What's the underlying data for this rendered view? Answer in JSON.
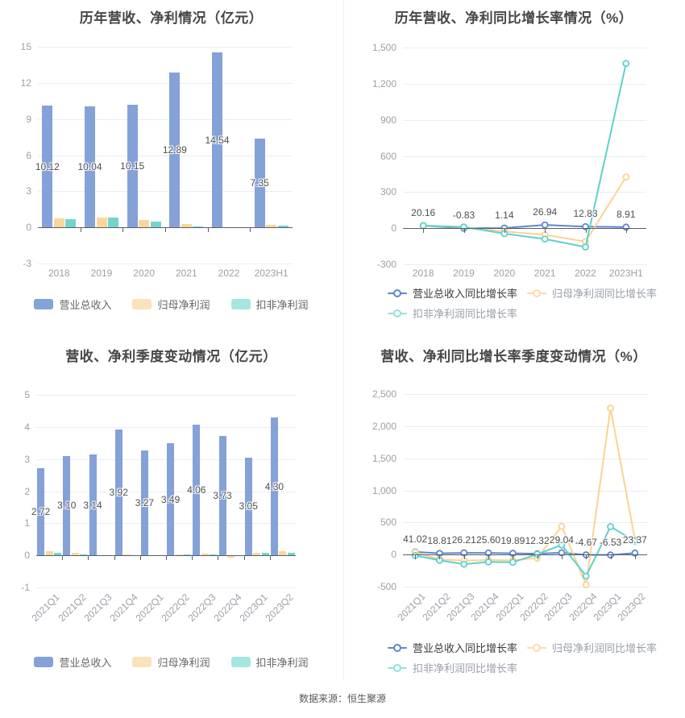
{
  "source": "数据来源：恒生聚源",
  "chart_data": [
    {
      "type": "bar",
      "title": "历年营收、净利情况（亿元）",
      "categories": [
        "2018",
        "2019",
        "2020",
        "2021",
        "2022",
        "2023H1"
      ],
      "x_label_rotate": false,
      "y_axis": {
        "min": -3,
        "max": 15,
        "grid": true,
        "ticks": [
          {
            "v": 15,
            "label": "15"
          },
          {
            "v": 12,
            "label": "12"
          },
          {
            "v": 9,
            "label": "9"
          },
          {
            "v": 6,
            "label": "6"
          },
          {
            "v": 3,
            "label": "3"
          },
          {
            "v": 0,
            "label": "0"
          },
          {
            "v": -3,
            "label": "-3"
          }
        ]
      },
      "series": [
        {
          "name": "营业总收入",
          "color": "#84A1D8",
          "legend_color": "#84A1D8",
          "values": [
            10.12,
            10.04,
            10.15,
            12.89,
            14.54,
            7.35
          ],
          "labels": [
            "10.12",
            "10.04",
            "10.15",
            "12.89",
            "14.54",
            "7.35"
          ]
        },
        {
          "name": "归母净利润",
          "color": "#F9D79C",
          "legend_color": "#FAE2BB",
          "values": [
            0.75,
            0.82,
            0.6,
            0.26,
            -0.05,
            0.2
          ]
        },
        {
          "name": "扣非净利润",
          "color": "#72D5CD",
          "legend_color": "#A6E6E0",
          "values": [
            0.7,
            0.8,
            0.5,
            0.05,
            0.02,
            0.16
          ]
        }
      ],
      "legend_position": "bottom-center"
    },
    {
      "type": "line",
      "title": "历年营收、净利同比增长率情况（%）",
      "categories": [
        "2018",
        "2019",
        "2020",
        "2021",
        "2022",
        "2023H1"
      ],
      "x_label_rotate": false,
      "y_axis": {
        "min": -300,
        "max": 1500,
        "grid": true,
        "ticks": [
          {
            "v": 1500,
            "label": "1,500"
          },
          {
            "v": 1200,
            "label": "1,200"
          },
          {
            "v": 900,
            "label": "900"
          },
          {
            "v": 600,
            "label": "600"
          },
          {
            "v": 300,
            "label": "300"
          },
          {
            "v": 0,
            "label": "0"
          },
          {
            "v": -300,
            "label": "-300"
          }
        ]
      },
      "series": [
        {
          "name": "营业总收入同比增长率",
          "color": "#5F86CE",
          "legend_color": "#5F86CE",
          "values": [
            20.16,
            -0.83,
            1.14,
            26.94,
            12.83,
            8.91
          ],
          "labels": [
            "20.16",
            "-0.83",
            "1.14",
            "26.94",
            "12.83",
            "8.91"
          ]
        },
        {
          "name": "归母净利润同比增长率",
          "color": "#FAD391",
          "legend_color": "#FBDCA9",
          "values": [
            20,
            8,
            -27,
            -55,
            -112,
            425
          ]
        },
        {
          "name": "扣非净利润同比增长率",
          "color": "#5ED1CB",
          "legend_color": "#93E1DC",
          "values": [
            21,
            10,
            -45,
            -90,
            -156,
            1368
          ]
        }
      ],
      "legend_position": "bottom-left"
    },
    {
      "type": "bar",
      "title": "营收、净利季度变动情况（亿元）",
      "categories": [
        "2021Q1",
        "2021Q2",
        "2021Q3",
        "2021Q4",
        "2022Q1",
        "2022Q2",
        "2022Q3",
        "2022Q4",
        "2023Q1",
        "2023Q2"
      ],
      "x_label_rotate": true,
      "y_axis": {
        "min": -1,
        "max": 5,
        "grid": true,
        "ticks": [
          {
            "v": 5,
            "label": "5"
          },
          {
            "v": 4,
            "label": "4"
          },
          {
            "v": 3,
            "label": "3"
          },
          {
            "v": 2,
            "label": "2"
          },
          {
            "v": 1,
            "label": "1"
          },
          {
            "v": 0,
            "label": "0"
          },
          {
            "v": -1,
            "label": "-1"
          }
        ]
      },
      "series": [
        {
          "name": "营业总收入",
          "color": "#84A1D8",
          "legend_color": "#84A1D8",
          "values": [
            2.72,
            3.1,
            3.14,
            3.92,
            3.27,
            3.49,
            4.06,
            3.73,
            3.05,
            4.3
          ],
          "labels": [
            "2.72",
            "3.10",
            "3.14",
            "3.92",
            "3.27",
            "3.49",
            "4.06",
            "3.73",
            "3.05",
            "4.30"
          ]
        },
        {
          "name": "归母净利润",
          "color": "#F9D79C",
          "legend_color": "#FAE2BB",
          "values": [
            0.13,
            0.09,
            -0.01,
            0.03,
            -0.01,
            0.03,
            0.05,
            -0.08,
            0.07,
            0.12
          ]
        },
        {
          "name": "扣非净利润",
          "color": "#72D5CD",
          "legend_color": "#A6E6E0",
          "values": [
            0.08,
            0.04,
            -0.03,
            0.01,
            -0.02,
            0.04,
            0.04,
            -0.03,
            0.07,
            0.09
          ]
        }
      ],
      "legend_position": "bottom-center"
    },
    {
      "type": "line",
      "title": "营收、净利同比增长率季度变动情况（%）",
      "categories": [
        "2021Q1",
        "2021Q2",
        "2021Q3",
        "2021Q4",
        "2022Q1",
        "2022Q2",
        "2022Q3",
        "2022Q4",
        "2023Q1",
        "2023Q2"
      ],
      "x_label_rotate": true,
      "y_axis": {
        "min": -500,
        "max": 2500,
        "grid": true,
        "ticks": [
          {
            "v": 2500,
            "label": "2,500"
          },
          {
            "v": 2000,
            "label": "2,000"
          },
          {
            "v": 1500,
            "label": "1,500"
          },
          {
            "v": 1000,
            "label": "1,000"
          },
          {
            "v": 500,
            "label": "500"
          },
          {
            "v": 0,
            "label": "0"
          },
          {
            "v": -500,
            "label": "-500"
          }
        ]
      },
      "series": [
        {
          "name": "营业总收入同比增长率",
          "color": "#5F86CE",
          "legend_color": "#5F86CE",
          "values": [
            41.02,
            18.81,
            26.21,
            25.6,
            19.89,
            12.32,
            29.04,
            -4.67,
            -6.53,
            23.37
          ],
          "labels": [
            "41.02",
            "18.81",
            "26.21",
            "25.60",
            "19.89",
            "12.32",
            "29.04",
            "-4.67",
            "-6.53",
            "23.37"
          ]
        },
        {
          "name": "归母净利润同比增长率",
          "color": "#FAD391",
          "legend_color": "#FBDCA9",
          "values": [
            35,
            -75,
            -95,
            -85,
            -90,
            -55,
            440,
            -470,
            2280,
            235
          ]
        },
        {
          "name": "扣非净利润同比增长率",
          "color": "#5ED1CB",
          "legend_color": "#93E1DC",
          "values": [
            -15,
            -90,
            -150,
            -115,
            -120,
            5,
            150,
            -335,
            435,
            210
          ]
        }
      ],
      "legend_position": "bottom-left"
    }
  ]
}
